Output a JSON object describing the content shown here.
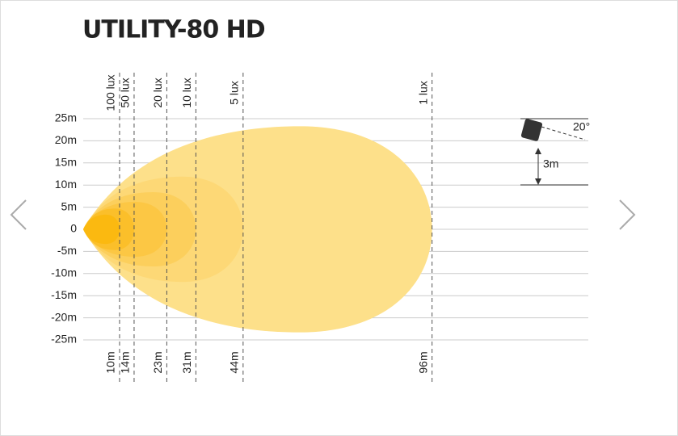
{
  "chart_data": {
    "type": "isolux",
    "title": "UTILITY-80 HD",
    "xlim": [
      0,
      139
    ],
    "ylim": [
      -25,
      25
    ],
    "yticks": [
      {
        "value": 25,
        "label": "25m"
      },
      {
        "value": 20,
        "label": "20m"
      },
      {
        "value": 15,
        "label": "15m"
      },
      {
        "value": 10,
        "label": "10m"
      },
      {
        "value": 5,
        "label": "5m"
      },
      0,
      {
        "value": -5,
        "label": "-5m"
      },
      {
        "value": -10,
        "label": "-10m"
      },
      {
        "value": -15,
        "label": "-15m"
      },
      {
        "value": -20,
        "label": "-20m"
      },
      {
        "value": -25,
        "label": "-25m"
      }
    ],
    "series": [
      {
        "name": "1 lux",
        "color": "#fde08a",
        "distance": 96,
        "distance_label": "96m",
        "half_width": 23.3
      },
      {
        "name": "5 lux",
        "color": "#fdd876",
        "distance": 44,
        "distance_label": "44m",
        "half_width": 11.9
      },
      {
        "name": "10 lux",
        "color": "#fccf5c",
        "distance": 31,
        "distance_label": "31m",
        "half_width": 8.4
      },
      {
        "name": "20 lux",
        "color": "#fcc744",
        "distance": 23,
        "distance_label": "23m",
        "half_width": 6.2
      },
      {
        "name": "50 lux",
        "color": "#fbbf2a",
        "distance": 14,
        "distance_label": "14m",
        "half_width": 4.7
      },
      {
        "name": "100 lux",
        "color": "#fbb910",
        "distance": 10,
        "distance_label": "10m",
        "half_width": 3.3
      }
    ],
    "mount_angle_label": "20°",
    "mount_height_label": "3m"
  }
}
